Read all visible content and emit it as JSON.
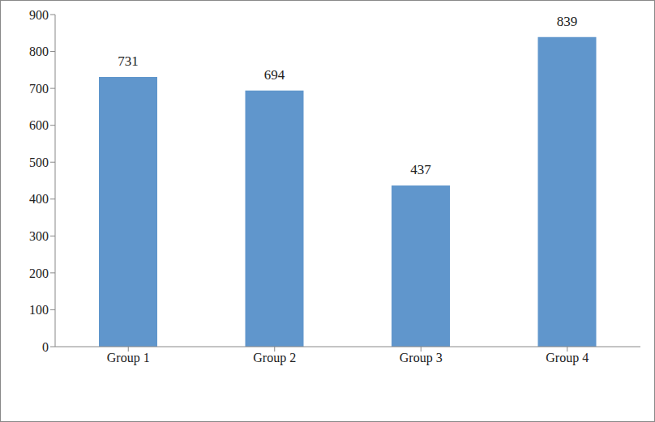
{
  "chart_data": {
    "type": "bar",
    "categories": [
      "Group 1",
      "Group 2",
      "Group 3",
      "Group 4"
    ],
    "values": [
      731,
      694,
      437,
      839
    ],
    "color": "#6096cc",
    "ylim": [
      0,
      900
    ],
    "yticks": [
      0,
      100,
      200,
      300,
      400,
      500,
      600,
      700,
      800,
      900
    ],
    "grid": false,
    "data_labels": true
  }
}
